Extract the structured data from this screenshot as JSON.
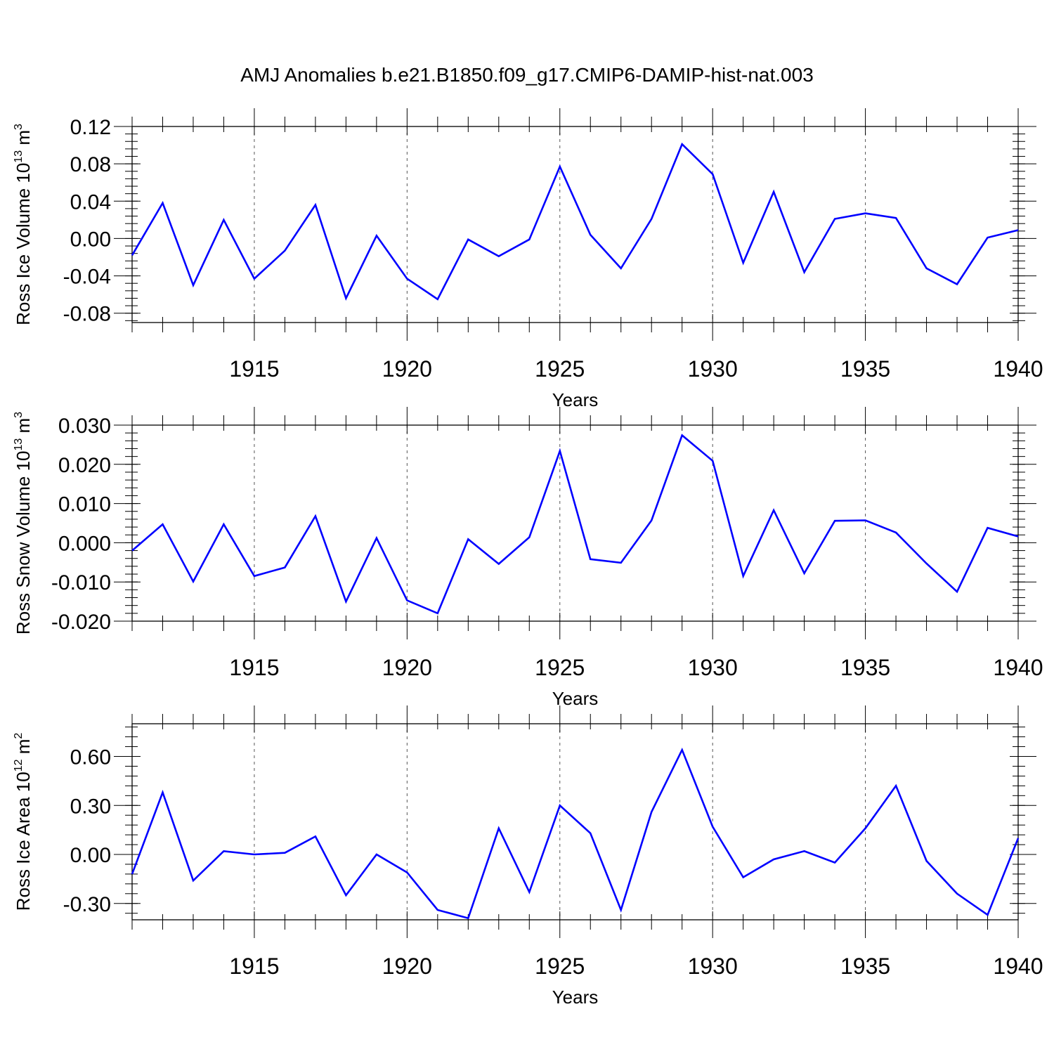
{
  "title": "AMJ Anomalies b.e21.B1850.f09_g17.CMIP6-DAMIP-hist-nat.003",
  "line_color": "#0000ff",
  "chart_data": [
    {
      "type": "line",
      "ylabel": {
        "main": "Ross Ice Volume 10",
        "exp": "13",
        "unit": " m",
        "unit_exp": "3"
      },
      "xlabel": "Years",
      "xlim": [
        1911,
        1940
      ],
      "ylim": [
        -0.09,
        0.12
      ],
      "yticks": [
        -0.08,
        -0.04,
        0.0,
        0.04,
        0.08,
        0.12
      ],
      "ytick_labels": [
        "-0.08",
        "-0.04",
        "0.00",
        "0.04",
        "0.08",
        "0.12"
      ],
      "yminor_step": 0.008,
      "xticks": [
        1915,
        1920,
        1925,
        1930,
        1935,
        1940
      ],
      "xtick_labels": [
        "1915",
        "1920",
        "1925",
        "1930",
        "1935",
        "1940"
      ],
      "x": [
        1911,
        1912,
        1913,
        1914,
        1915,
        1916,
        1917,
        1918,
        1919,
        1920,
        1921,
        1922,
        1923,
        1924,
        1925,
        1926,
        1927,
        1928,
        1929,
        1930,
        1931,
        1932,
        1933,
        1934,
        1935,
        1936,
        1937,
        1938,
        1939,
        1940
      ],
      "series": [
        {
          "values": [
            -0.018,
            0.038,
            -0.05,
            0.02,
            -0.043,
            -0.013,
            0.036,
            -0.064,
            0.003,
            -0.043,
            -0.065,
            -0.001,
            -0.019,
            -0.001,
            0.077,
            0.004,
            -0.032,
            0.021,
            0.101,
            0.069,
            -0.026,
            0.05,
            -0.036,
            0.021,
            0.027,
            0.022,
            -0.032,
            -0.049,
            0.001,
            0.009
          ]
        }
      ]
    },
    {
      "type": "line",
      "ylabel": {
        "main": "Ross Snow Volume 10",
        "exp": "13",
        "unit": " m",
        "unit_exp": "3"
      },
      "xlabel": "Years",
      "xlim": [
        1911,
        1940
      ],
      "ylim": [
        -0.02,
        0.03
      ],
      "yticks": [
        -0.02,
        -0.01,
        0.0,
        0.01,
        0.02,
        0.03
      ],
      "ytick_labels": [
        "-0.020",
        "-0.010",
        "0.000",
        "0.010",
        "0.020",
        "0.030"
      ],
      "yminor_step": 0.002,
      "xticks": [
        1915,
        1920,
        1925,
        1930,
        1935,
        1940
      ],
      "xtick_labels": [
        "1915",
        "1920",
        "1925",
        "1930",
        "1935",
        "1940"
      ],
      "x": [
        1911,
        1912,
        1913,
        1914,
        1915,
        1916,
        1917,
        1918,
        1919,
        1920,
        1921,
        1922,
        1923,
        1924,
        1925,
        1926,
        1927,
        1928,
        1929,
        1930,
        1931,
        1932,
        1933,
        1934,
        1935,
        1936,
        1937,
        1938,
        1939,
        1940
      ],
      "series": [
        {
          "values": [
            -0.002,
            0.0047,
            -0.0099,
            0.0047,
            -0.0085,
            -0.0063,
            0.0068,
            -0.015,
            0.0012,
            -0.0147,
            -0.018,
            0.0009,
            -0.0054,
            0.0014,
            0.0234,
            -0.0042,
            -0.0051,
            0.0057,
            0.0274,
            0.0209,
            -0.0085,
            0.0083,
            -0.0078,
            0.0056,
            0.0057,
            0.0026,
            -0.0053,
            -0.0125,
            0.0038,
            0.0016
          ]
        }
      ]
    },
    {
      "type": "line",
      "ylabel": {
        "main": "Ross Ice Area 10",
        "exp": "12",
        "unit": " m",
        "unit_exp": "2"
      },
      "xlabel": "Years",
      "xlim": [
        1911,
        1940
      ],
      "ylim": [
        -0.4,
        0.8
      ],
      "yticks": [
        -0.3,
        0.0,
        0.3,
        0.6
      ],
      "ytick_labels": [
        "-0.30",
        "0.00",
        "0.30",
        "0.60"
      ],
      "yminor_step": 0.06,
      "xticks": [
        1915,
        1920,
        1925,
        1930,
        1935,
        1940
      ],
      "xtick_labels": [
        "1915",
        "1920",
        "1925",
        "1930",
        "1935",
        "1940"
      ],
      "x": [
        1911,
        1912,
        1913,
        1914,
        1915,
        1916,
        1917,
        1918,
        1919,
        1920,
        1921,
        1922,
        1923,
        1924,
        1925,
        1926,
        1927,
        1928,
        1929,
        1930,
        1931,
        1932,
        1933,
        1934,
        1935,
        1936,
        1937,
        1938,
        1939,
        1940
      ],
      "series": [
        {
          "values": [
            -0.12,
            0.38,
            -0.16,
            0.02,
            0.0,
            0.01,
            0.11,
            -0.25,
            0.0,
            -0.11,
            -0.34,
            -0.39,
            0.16,
            -0.23,
            0.3,
            0.13,
            -0.34,
            0.26,
            0.64,
            0.17,
            -0.14,
            -0.03,
            0.02,
            -0.05,
            0.16,
            0.42,
            -0.04,
            -0.24,
            -0.37,
            0.1
          ]
        }
      ]
    }
  ]
}
